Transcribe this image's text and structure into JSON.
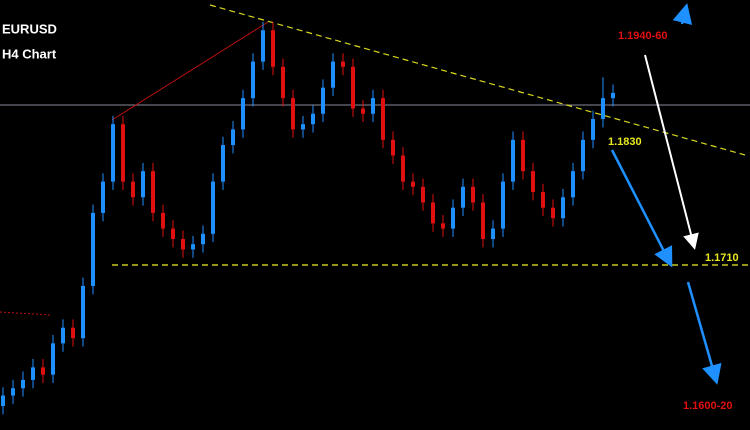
{
  "chart_data": {
    "type": "candlestick",
    "title": "EURUSD",
    "subtitle": "H4 Chart",
    "up_color": "#1e90ff",
    "down_color": "#e01010",
    "ylim": [
      1.1552,
      1.1964
    ],
    "open": [
      1.1575,
      1.1585,
      1.1592,
      1.16,
      1.1612,
      1.1605,
      1.1635,
      1.165,
      1.164,
      1.169,
      1.176,
      1.179,
      1.1845,
      1.179,
      1.1775,
      1.18,
      1.176,
      1.1745,
      1.1735,
      1.1725,
      1.173,
      1.174,
      1.179,
      1.1825,
      1.184,
      1.187,
      1.1905,
      1.1935,
      1.19,
      1.187,
      1.184,
      1.1845,
      1.1855,
      1.188,
      1.1905,
      1.19,
      1.186,
      1.1855,
      1.187,
      1.183,
      1.1815,
      1.179,
      1.1785,
      1.177,
      1.175,
      1.1745,
      1.1765,
      1.1785,
      1.177,
      1.1735,
      1.1745,
      1.179,
      1.183,
      1.18,
      1.178,
      1.1765,
      1.1755,
      1.1775,
      1.18,
      1.183,
      1.185,
      1.187
    ],
    "high": [
      1.1593,
      1.16,
      1.1608,
      1.162,
      1.162,
      1.1643,
      1.1658,
      1.1658,
      1.1698,
      1.1768,
      1.1798,
      1.1853,
      1.1853,
      1.1798,
      1.1808,
      1.1808,
      1.1768,
      1.1753,
      1.1743,
      1.1738,
      1.1748,
      1.1798,
      1.1833,
      1.1848,
      1.1878,
      1.1913,
      1.1943,
      1.1943,
      1.1908,
      1.1878,
      1.1853,
      1.1863,
      1.1888,
      1.1913,
      1.1913,
      1.1908,
      1.1868,
      1.1878,
      1.1878,
      1.1838,
      1.1823,
      1.1798,
      1.1793,
      1.1778,
      1.1758,
      1.1773,
      1.1793,
      1.1793,
      1.1778,
      1.1753,
      1.1798,
      1.1838,
      1.1838,
      1.1808,
      1.1788,
      1.1773,
      1.1783,
      1.1808,
      1.1838,
      1.1858,
      1.189,
      1.1883
    ],
    "low": [
      1.1567,
      1.1577,
      1.1584,
      1.1592,
      1.1597,
      1.1597,
      1.1627,
      1.1632,
      1.1632,
      1.1682,
      1.1752,
      1.1782,
      1.1782,
      1.1767,
      1.1767,
      1.1752,
      1.1737,
      1.1727,
      1.1717,
      1.1717,
      1.1722,
      1.1732,
      1.1782,
      1.1817,
      1.1832,
      1.1862,
      1.1897,
      1.1892,
      1.1862,
      1.1832,
      1.1832,
      1.1837,
      1.1847,
      1.1872,
      1.1892,
      1.1852,
      1.1847,
      1.1847,
      1.1822,
      1.1807,
      1.1782,
      1.1777,
      1.1762,
      1.1742,
      1.1737,
      1.1737,
      1.1757,
      1.1762,
      1.1727,
      1.1727,
      1.1737,
      1.1782,
      1.1792,
      1.1772,
      1.1757,
      1.1747,
      1.1747,
      1.1767,
      1.1792,
      1.1822,
      1.1842,
      1.1862
    ],
    "close": [
      1.1585,
      1.1592,
      1.16,
      1.1612,
      1.1605,
      1.1635,
      1.165,
      1.164,
      1.169,
      1.176,
      1.179,
      1.1845,
      1.179,
      1.1775,
      1.18,
      1.176,
      1.1745,
      1.1735,
      1.1725,
      1.173,
      1.174,
      1.179,
      1.1825,
      1.184,
      1.187,
      1.1905,
      1.1935,
      1.19,
      1.187,
      1.184,
      1.1845,
      1.1855,
      1.188,
      1.1905,
      1.19,
      1.186,
      1.1855,
      1.187,
      1.183,
      1.1815,
      1.179,
      1.1785,
      1.177,
      1.175,
      1.1745,
      1.1765,
      1.1785,
      1.177,
      1.1735,
      1.1745,
      1.179,
      1.183,
      1.18,
      1.178,
      1.1765,
      1.1755,
      1.1775,
      1.18,
      1.183,
      1.185,
      1.187,
      1.1875
    ],
    "annotations": [
      "1.1940-60",
      "1.1830",
      "1.1710",
      "1.1600-20"
    ]
  }
}
